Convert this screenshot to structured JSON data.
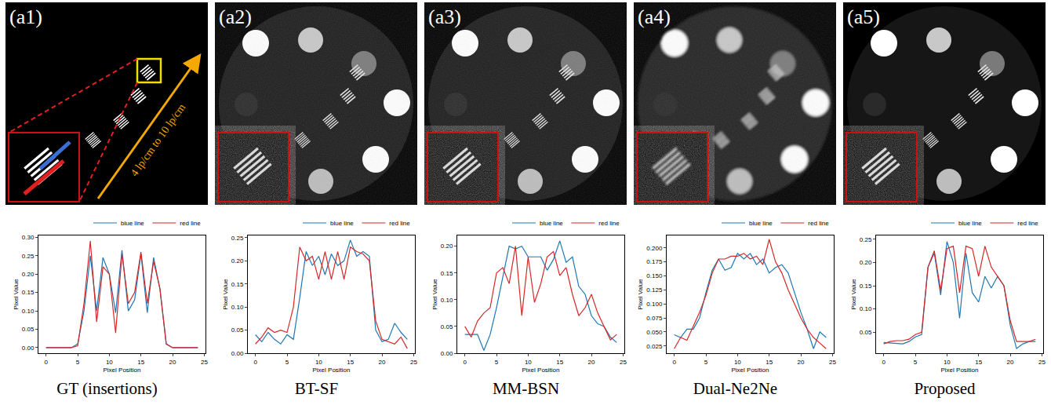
{
  "chart_data": [
    {
      "type": "line",
      "title": "GT (insertions)",
      "panel_label": "(a1)",
      "annotations": [
        "4 lp/cm to 10 lp/cm"
      ],
      "x_label": "Pixel Position",
      "y_label": "Pixel Value",
      "legend": "top",
      "grid": false,
      "x": [
        0,
        1,
        2,
        3,
        4,
        5,
        6,
        7,
        8,
        9,
        10,
        11,
        12,
        13,
        14,
        15,
        16,
        17,
        18,
        19,
        20,
        21,
        22,
        23,
        24
      ],
      "xlim": [
        -1.2,
        25.2
      ],
      "xticks": [
        0,
        5,
        10,
        15,
        20,
        25
      ],
      "ylim": [
        -0.015,
        0.305
      ],
      "yticks": [
        {
          "value": 0,
          "label": "0.00"
        },
        {
          "value": 0.05,
          "label": "0.05"
        },
        {
          "value": 0.1,
          "label": "0.10"
        },
        {
          "value": 0.15,
          "label": "0.15"
        },
        {
          "value": 0.2,
          "label": "0.20"
        },
        {
          "value": 0.25,
          "label": "0.25"
        },
        {
          "value": 0.3,
          "label": "0.30"
        }
      ],
      "series": [
        {
          "name": "blue line",
          "color": "#1f77b4",
          "values": [
            0,
            0,
            0,
            0,
            0,
            0.01,
            0.1,
            0.25,
            0.1,
            0.245,
            0.2,
            0.095,
            0.265,
            0.1,
            0.13,
            0.255,
            0.095,
            0.245,
            0.16,
            0.01,
            0,
            0,
            0,
            0,
            0
          ]
        },
        {
          "name": "red line",
          "color": "#d62728",
          "values": [
            0,
            0,
            0,
            0,
            0,
            0.005,
            0.12,
            0.29,
            0.07,
            0.22,
            0.2,
            0.04,
            0.255,
            0.12,
            0.15,
            0.26,
            0.12,
            0.235,
            0.16,
            0.01,
            0,
            0,
            0,
            0,
            0
          ]
        }
      ]
    },
    {
      "type": "line",
      "title": "BT-SF",
      "panel_label": "(a2)",
      "x_label": "Pixel Position",
      "y_label": "Pixel Value",
      "legend": "top",
      "grid": false,
      "x": [
        0,
        1,
        2,
        3,
        4,
        5,
        6,
        7,
        8,
        9,
        10,
        11,
        12,
        13,
        14,
        15,
        16,
        17,
        18,
        19,
        20,
        21,
        22,
        23,
        24
      ],
      "xlim": [
        -1.2,
        25.2
      ],
      "xticks": [
        0,
        5,
        10,
        15,
        20,
        25
      ],
      "ylim": [
        0,
        0.255
      ],
      "yticks": [
        {
          "value": 0,
          "label": "0.00"
        },
        {
          "value": 0.05,
          "label": "0.05"
        },
        {
          "value": 0.1,
          "label": "0.10"
        },
        {
          "value": 0.15,
          "label": "0.15"
        },
        {
          "value": 0.2,
          "label": "0.20"
        },
        {
          "value": 0.25,
          "label": "0.25"
        }
      ],
      "series": [
        {
          "name": "blue line",
          "color": "#1f77b4",
          "values": [
            0.04,
            0.025,
            0.045,
            0.03,
            0.02,
            0.04,
            0.03,
            0.12,
            0.22,
            0.19,
            0.21,
            0.17,
            0.215,
            0.19,
            0.2,
            0.245,
            0.21,
            0.22,
            0.21,
            0.05,
            0.025,
            0.03,
            0.065,
            0.045,
            0.03
          ]
        },
        {
          "name": "red line",
          "color": "#d62728",
          "values": [
            0.02,
            0.035,
            0.055,
            0.045,
            0.05,
            0.045,
            0.1,
            0.23,
            0.2,
            0.21,
            0.16,
            0.22,
            0.16,
            0.22,
            0.16,
            0.23,
            0.22,
            0.215,
            0.2,
            0.07,
            0.03,
            0.025,
            0.02,
            0.035,
            0.01
          ]
        }
      ]
    },
    {
      "type": "line",
      "title": "MM-BSN",
      "panel_label": "(a3)",
      "x_label": "Pixel Position",
      "y_label": "Pixel Value",
      "legend": "top",
      "grid": false,
      "x": [
        0,
        1,
        2,
        3,
        4,
        5,
        6,
        7,
        8,
        9,
        10,
        11,
        12,
        13,
        14,
        15,
        16,
        17,
        18,
        19,
        20,
        21,
        22,
        23,
        24
      ],
      "xlim": [
        -1.2,
        25.2
      ],
      "xticks": [
        0,
        5,
        10,
        15,
        20,
        25
      ],
      "ylim": [
        0,
        0.22
      ],
      "yticks": [
        {
          "value": 0,
          "label": "0.00"
        },
        {
          "value": 0.05,
          "label": "0.05"
        },
        {
          "value": 0.1,
          "label": "0.10"
        },
        {
          "value": 0.15,
          "label": "0.15"
        },
        {
          "value": 0.2,
          "label": "0.20"
        }
      ],
      "series": [
        {
          "name": "blue line",
          "color": "#1f77b4",
          "values": [
            0.035,
            0.035,
            0.035,
            0.005,
            0.035,
            0.085,
            0.14,
            0.2,
            0.195,
            0.2,
            0.18,
            0.18,
            0.18,
            0.155,
            0.175,
            0.21,
            0.17,
            0.18,
            0.125,
            0.11,
            0.07,
            0.055,
            0.05,
            0.03,
            0.02
          ]
        },
        {
          "name": "red line",
          "color": "#d62728",
          "values": [
            0.05,
            0.03,
            0.06,
            0.075,
            0.085,
            0.15,
            0.16,
            0.13,
            0.2,
            0.07,
            0.18,
            0.095,
            0.13,
            0.18,
            0.19,
            0.145,
            0.16,
            0.11,
            0.07,
            0.085,
            0.11,
            0.075,
            0.05,
            0.025,
            0.035
          ]
        }
      ]
    },
    {
      "type": "line",
      "title": "Dual-Ne2Ne",
      "panel_label": "(a4)",
      "x_label": "Pixel Position",
      "y_label": "Pixel Value",
      "legend": "top",
      "grid": false,
      "x": [
        0,
        1,
        2,
        3,
        4,
        5,
        6,
        7,
        8,
        9,
        10,
        11,
        12,
        13,
        14,
        15,
        16,
        17,
        18,
        19,
        20,
        21,
        22,
        23,
        24
      ],
      "xlim": [
        -1.2,
        25.2
      ],
      "xticks": [
        0,
        5,
        10,
        15,
        20,
        25
      ],
      "ylim": [
        0.012,
        0.222
      ],
      "yticks": [
        {
          "value": 0.025,
          "label": "0.025"
        },
        {
          "value": 0.05,
          "label": "0.050"
        },
        {
          "value": 0.075,
          "label": "0.075"
        },
        {
          "value": 0.1,
          "label": "0.100"
        },
        {
          "value": 0.125,
          "label": "0.125"
        },
        {
          "value": 0.15,
          "label": "0.150"
        },
        {
          "value": 0.175,
          "label": "0.175"
        },
        {
          "value": 0.2,
          "label": "0.200"
        }
      ],
      "series": [
        {
          "name": "blue line",
          "color": "#1f77b4",
          "values": [
            0.045,
            0.04,
            0.055,
            0.055,
            0.075,
            0.12,
            0.16,
            0.18,
            0.16,
            0.165,
            0.19,
            0.18,
            0.19,
            0.17,
            0.18,
            0.155,
            0.165,
            0.17,
            0.155,
            0.12,
            0.085,
            0.055,
            0.02,
            0.05,
            0.04
          ]
        },
        {
          "name": "red line",
          "color": "#d62728",
          "values": [
            0.02,
            0.04,
            0.035,
            0.06,
            0.085,
            0.115,
            0.155,
            0.18,
            0.18,
            0.185,
            0.185,
            0.19,
            0.18,
            0.185,
            0.17,
            0.215,
            0.175,
            0.155,
            0.125,
            0.1,
            0.075,
            0.055,
            0.04,
            0.03,
            0.02
          ]
        }
      ]
    },
    {
      "type": "line",
      "title": "Proposed",
      "panel_label": "(a5)",
      "x_label": "Pixel Position",
      "y_label": "Pixel Value",
      "legend": "top",
      "grid": false,
      "x": [
        0,
        1,
        2,
        3,
        4,
        5,
        6,
        7,
        8,
        9,
        10,
        11,
        12,
        13,
        14,
        15,
        16,
        17,
        18,
        19,
        20,
        21,
        22,
        23,
        24
      ],
      "xlim": [
        -1.2,
        25.2
      ],
      "xticks": [
        0,
        5,
        10,
        15,
        20,
        25
      ],
      "ylim": [
        0.005,
        0.258
      ],
      "yticks": [
        {
          "value": 0.05,
          "label": "0.05"
        },
        {
          "value": 0.1,
          "label": "0.10"
        },
        {
          "value": 0.15,
          "label": "0.15"
        },
        {
          "value": 0.2,
          "label": "0.20"
        },
        {
          "value": 0.25,
          "label": "0.25"
        }
      ],
      "series": [
        {
          "name": "blue line",
          "color": "#1f77b4",
          "values": [
            0.028,
            0.027,
            0.027,
            0.025,
            0.03,
            0.04,
            0.045,
            0.19,
            0.22,
            0.13,
            0.245,
            0.2,
            0.08,
            0.22,
            0.135,
            0.115,
            0.17,
            0.145,
            0.17,
            0.15,
            0.065,
            0.015,
            0.025,
            0.03,
            0.03
          ]
        },
        {
          "name": "red line",
          "color": "#d62728",
          "values": [
            0.025,
            0.03,
            0.032,
            0.032,
            0.035,
            0.045,
            0.05,
            0.19,
            0.225,
            0.14,
            0.23,
            0.235,
            0.135,
            0.235,
            0.23,
            0.17,
            0.235,
            0.19,
            0.17,
            0.15,
            0.075,
            0.03,
            0.03,
            0.03,
            0.035
          ]
        }
      ]
    }
  ]
}
